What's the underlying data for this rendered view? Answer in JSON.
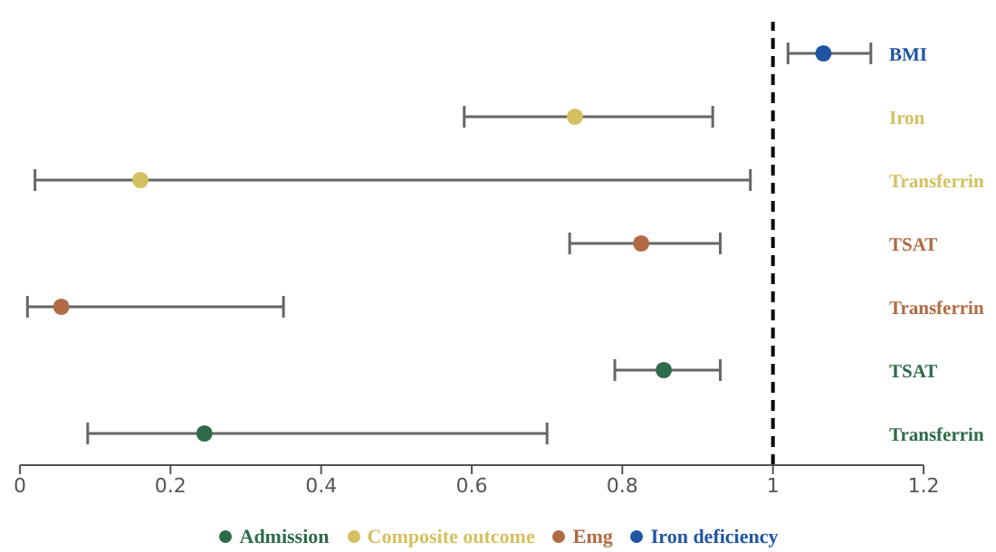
{
  "chart_data": {
    "type": "scatter",
    "orientation": "horizontal",
    "categories": [
      "BMI",
      "Iron",
      "Transferrin",
      "TSAT",
      "Transferrin",
      "TSAT",
      "Transferrin"
    ],
    "series": [
      {
        "name": "Iron deficiency",
        "color": "#1f55a3",
        "values": [
          1.067,
          null,
          null,
          null,
          null,
          null,
          null
        ],
        "errors": [
          [
            1.02,
            1.13
          ],
          null,
          null,
          null,
          null,
          null,
          null
        ]
      },
      {
        "name": "Composite outcome",
        "color": "#d4c060",
        "values": [
          null,
          0.737,
          0.16,
          null,
          null,
          null,
          null
        ],
        "errors": [
          null,
          [
            0.59,
            0.92
          ],
          [
            0.02,
            0.97
          ],
          null,
          null,
          null,
          null
        ]
      },
      {
        "name": "Emg",
        "color": "#b06a44",
        "values": [
          null,
          null,
          null,
          0.825,
          0.055,
          null,
          null
        ],
        "errors": [
          null,
          null,
          null,
          [
            0.73,
            0.93
          ],
          [
            0.01,
            0.35
          ],
          null,
          null
        ]
      },
      {
        "name": "Admission",
        "color": "#2e6b4a",
        "values": [
          null,
          null,
          null,
          null,
          null,
          0.855,
          0.245
        ],
        "errors": [
          null,
          null,
          null,
          null,
          null,
          [
            0.79,
            0.93
          ],
          [
            0.09,
            0.7
          ]
        ]
      }
    ],
    "xlim": [
      0,
      1.2
    ],
    "xticks": [
      0,
      0.2,
      0.4,
      0.6,
      0.8,
      1,
      1.2
    ],
    "ref_lines": [
      {
        "axis": "x",
        "value": 1,
        "line_style": "dashed",
        "color": "#000000"
      }
    ],
    "legend": "bottom",
    "marker": "circle"
  }
}
